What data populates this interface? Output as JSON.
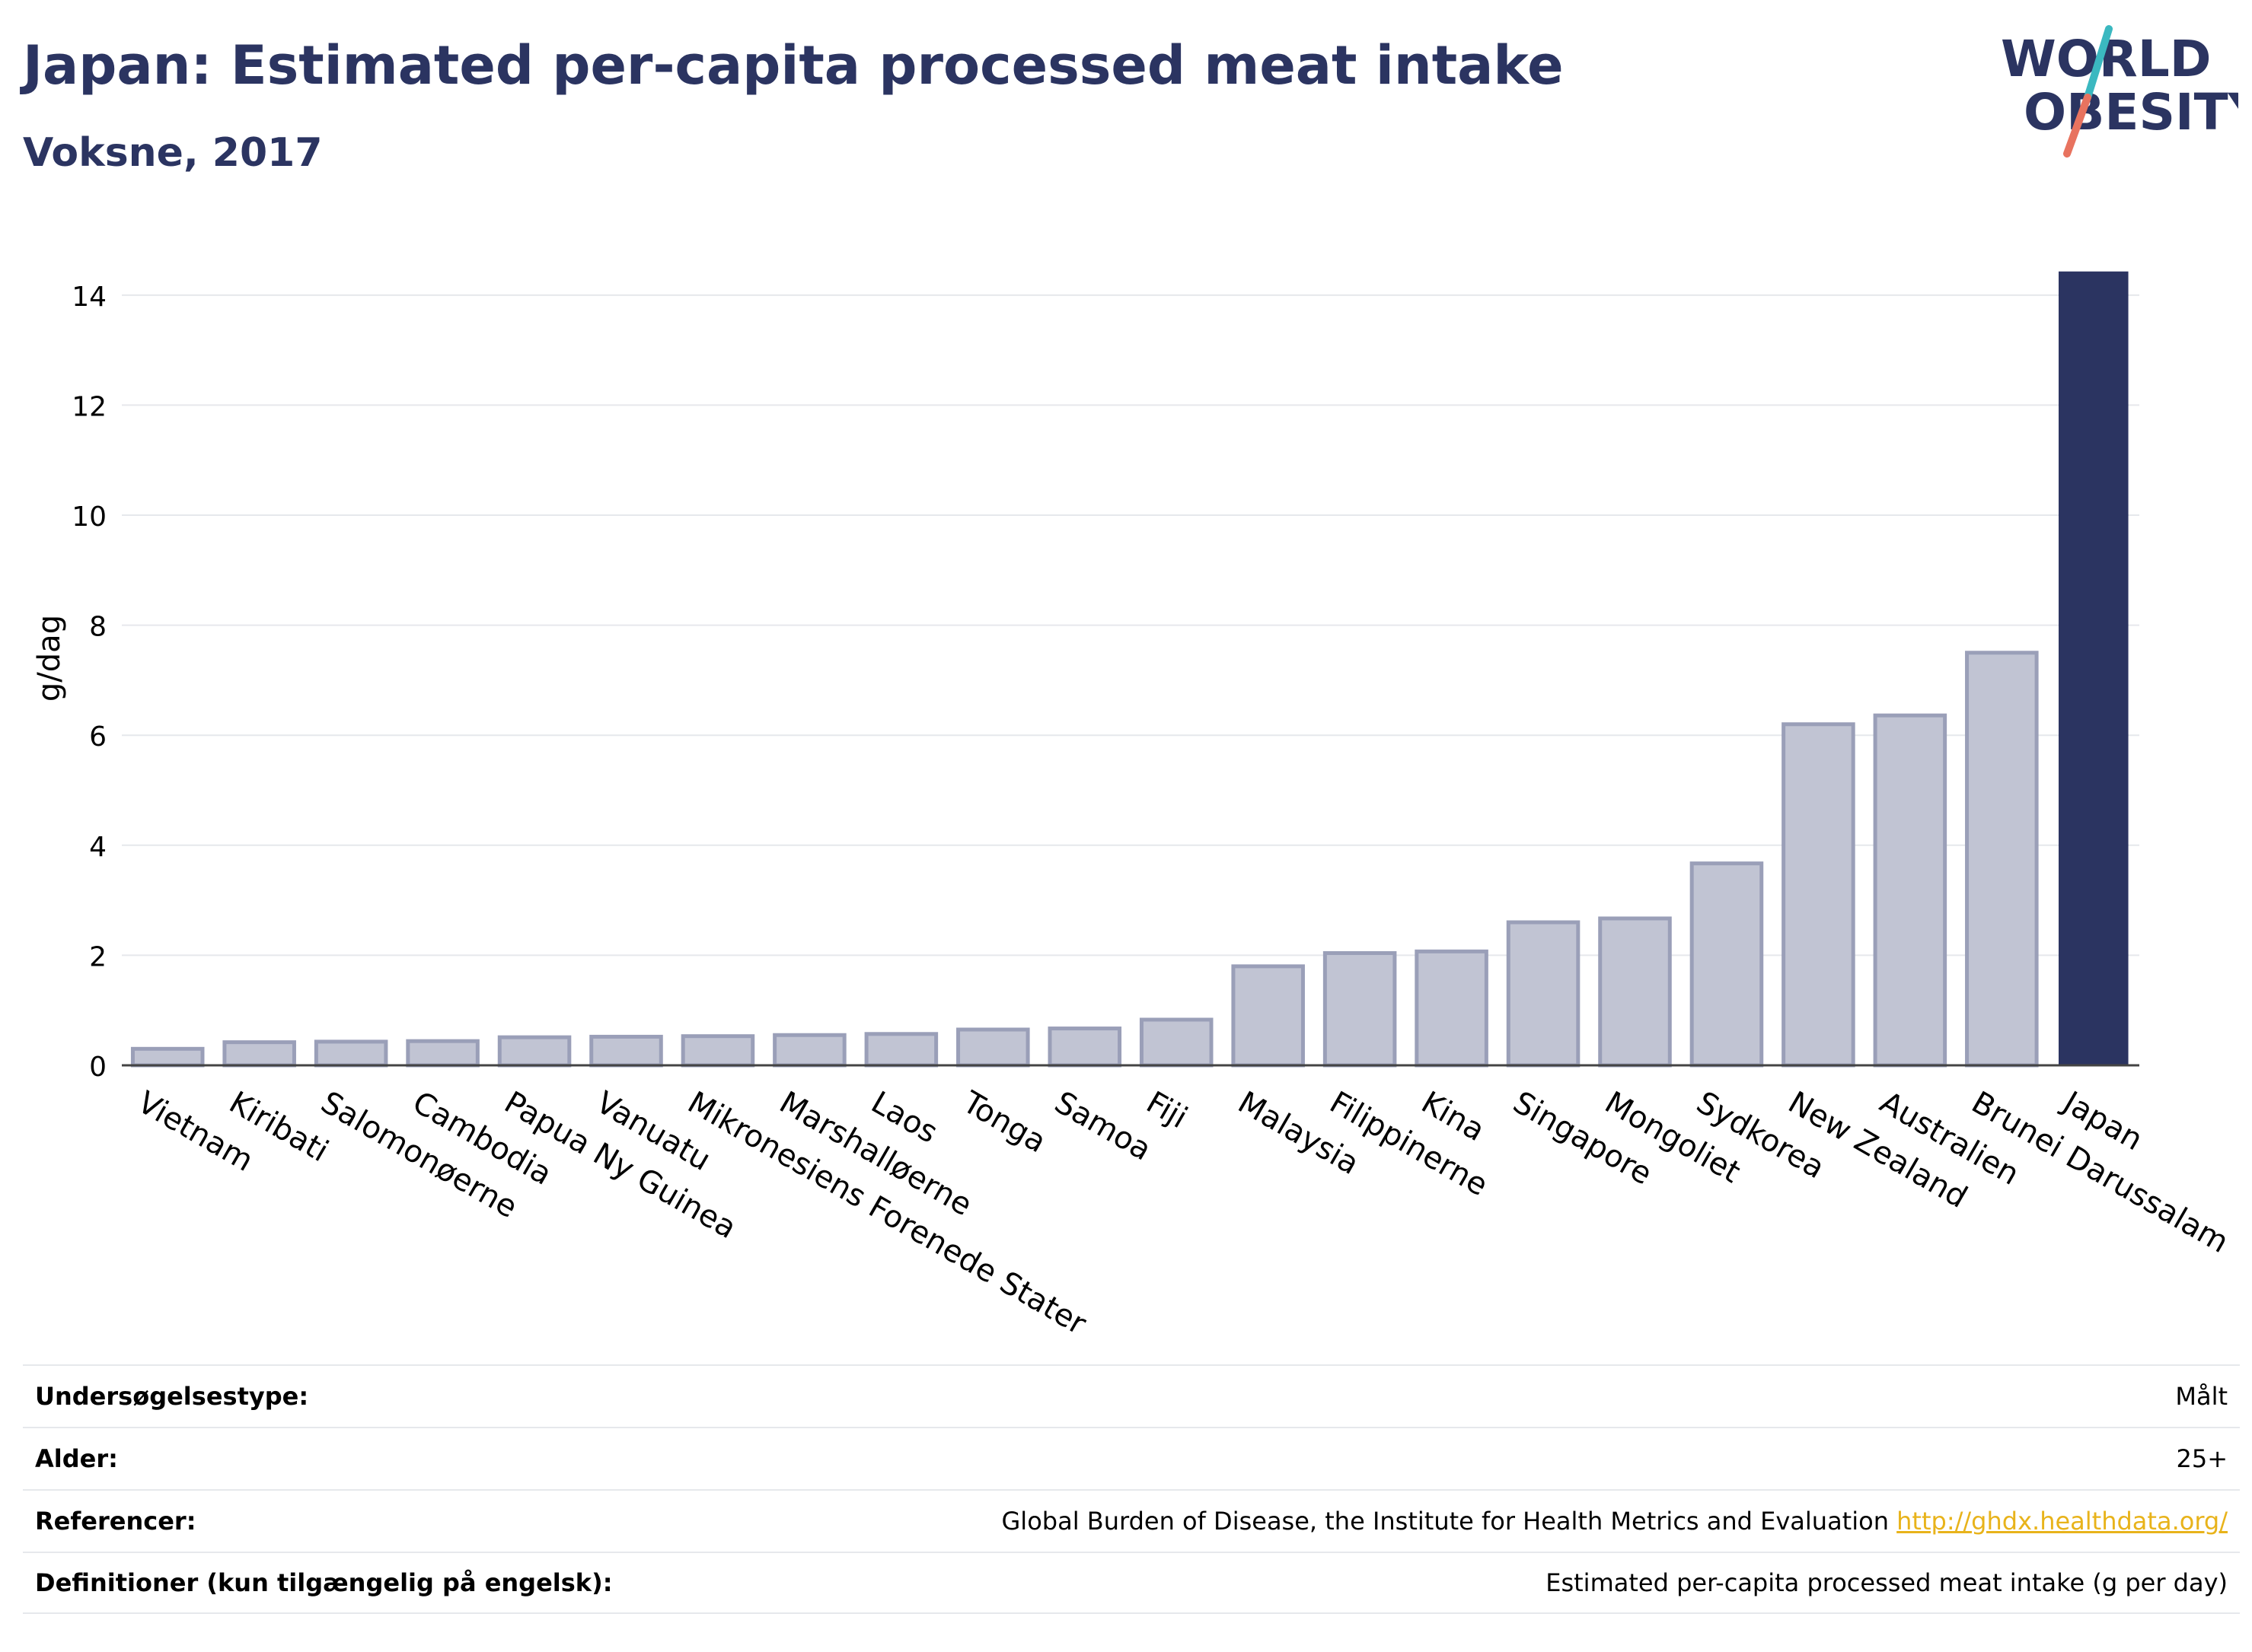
{
  "header": {
    "title": "Japan: Estimated per-capita processed meat intake",
    "subtitle": "Voksne, 2017"
  },
  "logo": {
    "line1": "WORLD",
    "line2": "OBESITY"
  },
  "colors": {
    "highlight": "#2b3461",
    "bar_fill": "#c1c4d3",
    "bar_stroke": "#9a9fb8",
    "grid": "#e6e8ec",
    "axis": "#444444",
    "logo_teal": "#3bb8c0",
    "logo_coral": "#e8735f",
    "link": "#e8b31b"
  },
  "chart_data": {
    "type": "bar",
    "ylabel": "g/dag",
    "ylim": [
      0,
      14.8
    ],
    "yticks": [
      0,
      2,
      4,
      6,
      8,
      10,
      12,
      14
    ],
    "grid": true,
    "highlight_category": "Japan",
    "categories": [
      "Vietnam",
      "Kiribati",
      "Salomonøerne",
      "Cambodia",
      "Papua Ny Guinea",
      "Vanuatu",
      "Mikronesiens Forenede Stater",
      "Marshalløerne",
      "Laos",
      "Tonga",
      "Samoa",
      "Fiji",
      "Malaysia",
      "Filippinerne",
      "Kina",
      "Singapore",
      "Mongoliet",
      "Sydkorea",
      "New Zealand",
      "Australien",
      "Brunei Darussalam",
      "Japan"
    ],
    "values": [
      0.3,
      0.42,
      0.43,
      0.44,
      0.51,
      0.52,
      0.53,
      0.55,
      0.57,
      0.65,
      0.67,
      0.83,
      1.8,
      2.04,
      2.07,
      2.6,
      2.67,
      3.67,
      6.2,
      6.36,
      7.5,
      14.43
    ]
  },
  "info_table": [
    {
      "label": "Undersøgelsestype:",
      "value": "Målt"
    },
    {
      "label": "Alder:",
      "value": "25+"
    },
    {
      "label": "Referencer:",
      "value": "Global Burden of Disease, the Institute for Health Metrics and Evaluation",
      "link": "http://ghdx.healthdata.org/"
    },
    {
      "label": "Definitioner (kun tilgængelig på engelsk):",
      "value": "Estimated per-capita processed meat intake (g per day)"
    }
  ]
}
